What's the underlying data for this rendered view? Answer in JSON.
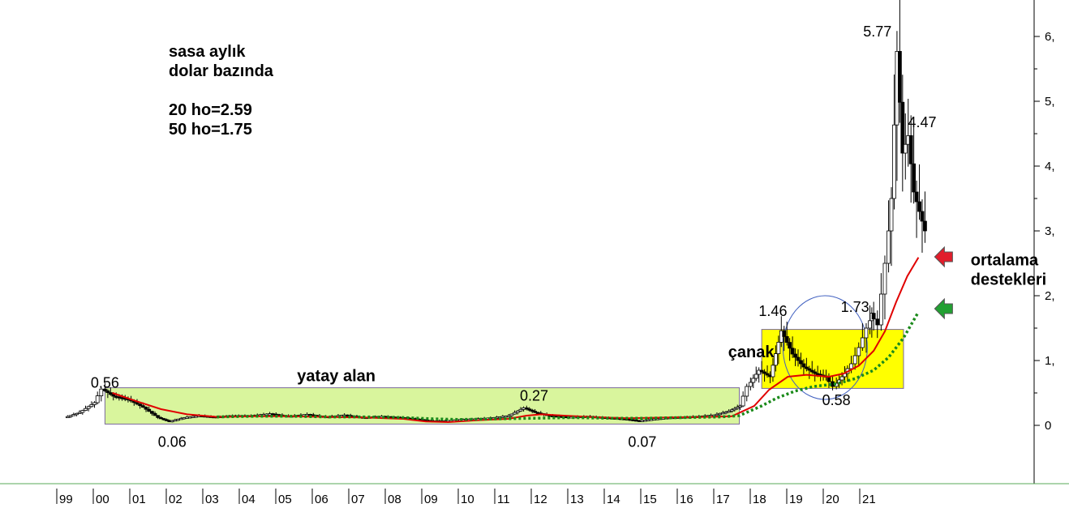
{
  "chart_data": {
    "type": "candlestick",
    "notes": [
      "sasa aylık",
      "dolar bazında",
      "20 ho=2.59",
      "50 ho=1.75"
    ],
    "x_tick_labels": [
      "99",
      "00",
      "01",
      "02",
      "03",
      "04",
      "05",
      "06",
      "07",
      "08",
      "09",
      "10",
      "11",
      "12",
      "13",
      "14",
      "15",
      "16",
      "17",
      "18",
      "19",
      "20",
      "21"
    ],
    "y_tick_labels": [
      "0",
      "1,",
      "2,",
      "3,",
      "4,",
      "5,",
      "6,"
    ],
    "y_ticks": [
      0,
      1,
      2,
      3,
      4,
      5,
      6
    ],
    "ylim": [
      -0.9,
      6.55
    ],
    "xlim": [
      1998.6,
      2024.9
    ],
    "annotations": [
      {
        "text": "0.56",
        "x": 2000.0,
        "y": 0.58,
        "style": "value"
      },
      {
        "text": "0.06",
        "x": 2001.8,
        "y": -0.33,
        "style": "value"
      },
      {
        "text": "0.27",
        "x": 2011.5,
        "y": 0.38,
        "style": "value"
      },
      {
        "text": "0.07",
        "x": 2014.4,
        "y": -0.33,
        "style": "value"
      },
      {
        "text": "1.46",
        "x": 2017.9,
        "y": 1.69,
        "style": "value"
      },
      {
        "text": "0.58",
        "x": 2019.6,
        "y": 0.31,
        "style": "value"
      },
      {
        "text": "1.73",
        "x": 2020.1,
        "y": 1.75,
        "style": "value"
      },
      {
        "text": "5.77",
        "x": 2020.7,
        "y": 6.0,
        "style": "value"
      },
      {
        "text": "4.47",
        "x": 2021.9,
        "y": 4.6,
        "style": "value"
      },
      {
        "text": "yatay alan",
        "x": 2006.2,
        "y": 0.68,
        "style": "label"
      },
      {
        "text": "çanak",
        "x": 2016.7,
        "y": 1.05,
        "style": "label"
      },
      {
        "text": "ortalama",
        "x": 2023.2,
        "y": 2.47,
        "style": "label"
      },
      {
        "text": "destekleri",
        "x": 2023.2,
        "y": 2.17,
        "style": "label"
      }
    ],
    "regions": [
      {
        "name": "yatay alan",
        "x0": 2000.0,
        "x1": 2017.0,
        "y0": 0.02,
        "y1": 0.58,
        "color": "#d9f59d"
      },
      {
        "name": "çanak",
        "x0": 2017.6,
        "x1": 2021.4,
        "y0": 0.57,
        "y1": 1.48,
        "color": "#ffff00"
      }
    ],
    "arrows": [
      {
        "x": 2021.8,
        "y": 2.6,
        "color": "#e11d2b"
      },
      {
        "x": 2021.8,
        "y": 1.8,
        "color": "#22a032"
      }
    ],
    "series": [
      {
        "name": "20 ho",
        "color": "#e00000",
        "points": [
          [
            2000.2,
            0.5
          ],
          [
            2000.8,
            0.38
          ],
          [
            2001.5,
            0.25
          ],
          [
            2002.2,
            0.17
          ],
          [
            2003.0,
            0.13
          ],
          [
            2004.0,
            0.14
          ],
          [
            2005.0,
            0.14
          ],
          [
            2006.0,
            0.13
          ],
          [
            2007.0,
            0.12
          ],
          [
            2008.0,
            0.1
          ],
          [
            2008.6,
            0.06
          ],
          [
            2009.2,
            0.05
          ],
          [
            2010.0,
            0.08
          ],
          [
            2010.8,
            0.1
          ],
          [
            2011.3,
            0.15
          ],
          [
            2011.7,
            0.17
          ],
          [
            2012.3,
            0.15
          ],
          [
            2013.0,
            0.13
          ],
          [
            2014.0,
            0.11
          ],
          [
            2015.0,
            0.12
          ],
          [
            2016.0,
            0.13
          ],
          [
            2016.8,
            0.14
          ],
          [
            2017.4,
            0.3
          ],
          [
            2017.8,
            0.55
          ],
          [
            2018.3,
            0.75
          ],
          [
            2018.8,
            0.78
          ],
          [
            2019.4,
            0.75
          ],
          [
            2019.8,
            0.8
          ],
          [
            2020.2,
            0.92
          ],
          [
            2020.6,
            1.15
          ],
          [
            2020.9,
            1.45
          ],
          [
            2021.2,
            1.9
          ],
          [
            2021.5,
            2.3
          ],
          [
            2021.8,
            2.59
          ]
        ]
      },
      {
        "name": "50 ho",
        "color": "#1a8a1a",
        "points": [
          [
            2003.0,
            0.13
          ],
          [
            2004.0,
            0.14
          ],
          [
            2005.0,
            0.14
          ],
          [
            2006.0,
            0.13
          ],
          [
            2007.0,
            0.13
          ],
          [
            2008.0,
            0.12
          ],
          [
            2008.8,
            0.1
          ],
          [
            2009.5,
            0.09
          ],
          [
            2010.5,
            0.1
          ],
          [
            2011.5,
            0.11
          ],
          [
            2012.5,
            0.12
          ],
          [
            2013.5,
            0.11
          ],
          [
            2014.5,
            0.11
          ],
          [
            2015.5,
            0.12
          ],
          [
            2016.5,
            0.13
          ],
          [
            2017.0,
            0.15
          ],
          [
            2017.6,
            0.3
          ],
          [
            2018.0,
            0.42
          ],
          [
            2018.5,
            0.53
          ],
          [
            2019.0,
            0.6
          ],
          [
            2019.6,
            0.64
          ],
          [
            2020.1,
            0.72
          ],
          [
            2020.6,
            0.85
          ],
          [
            2021.0,
            1.05
          ],
          [
            2021.4,
            1.35
          ],
          [
            2021.8,
            1.75
          ]
        ]
      },
      {
        "name": "price",
        "color": "#000000",
        "points": [
          [
            1999.0,
            0.12
          ],
          [
            1999.4,
            0.2
          ],
          [
            1999.8,
            0.35
          ],
          [
            2000.0,
            0.56
          ],
          [
            2000.3,
            0.45
          ],
          [
            2000.7,
            0.4
          ],
          [
            2001.1,
            0.28
          ],
          [
            2001.5,
            0.12
          ],
          [
            2001.8,
            0.06
          ],
          [
            2002.2,
            0.12
          ],
          [
            2002.6,
            0.15
          ],
          [
            2003.0,
            0.13
          ],
          [
            2003.5,
            0.15
          ],
          [
            2004.0,
            0.15
          ],
          [
            2004.5,
            0.18
          ],
          [
            2005.0,
            0.14
          ],
          [
            2005.5,
            0.17
          ],
          [
            2006.0,
            0.13
          ],
          [
            2006.5,
            0.16
          ],
          [
            2007.0,
            0.12
          ],
          [
            2007.5,
            0.14
          ],
          [
            2008.0,
            0.12
          ],
          [
            2008.4,
            0.1
          ],
          [
            2008.8,
            0.07
          ],
          [
            2009.2,
            0.07
          ],
          [
            2009.6,
            0.09
          ],
          [
            2010.0,
            0.1
          ],
          [
            2010.5,
            0.12
          ],
          [
            2010.9,
            0.15
          ],
          [
            2011.3,
            0.27
          ],
          [
            2011.6,
            0.2
          ],
          [
            2012.0,
            0.15
          ],
          [
            2012.5,
            0.13
          ],
          [
            2013.0,
            0.14
          ],
          [
            2013.5,
            0.12
          ],
          [
            2014.0,
            0.1
          ],
          [
            2014.4,
            0.07
          ],
          [
            2014.8,
            0.1
          ],
          [
            2015.2,
            0.12
          ],
          [
            2015.6,
            0.13
          ],
          [
            2016.0,
            0.14
          ],
          [
            2016.4,
            0.16
          ],
          [
            2016.8,
            0.22
          ],
          [
            2017.1,
            0.3
          ],
          [
            2017.3,
            0.6
          ],
          [
            2017.6,
            0.85
          ],
          [
            2017.9,
            0.75
          ],
          [
            2018.2,
            1.46
          ],
          [
            2018.5,
            1.1
          ],
          [
            2018.8,
            0.9
          ],
          [
            2019.1,
            0.8
          ],
          [
            2019.4,
            0.75
          ],
          [
            2019.6,
            0.6
          ],
          [
            2019.9,
            0.8
          ],
          [
            2020.1,
            0.95
          ],
          [
            2020.3,
            1.2
          ],
          [
            2020.5,
            1.5
          ],
          [
            2020.6,
            1.73
          ],
          [
            2020.8,
            1.55
          ],
          [
            2021.0,
            2.5
          ],
          [
            2021.15,
            3.5
          ],
          [
            2021.3,
            5.77
          ],
          [
            2021.45,
            4.2
          ],
          [
            2021.6,
            4.47
          ],
          [
            2021.75,
            3.6
          ],
          [
            2021.9,
            3.3
          ],
          [
            2022.05,
            3.0
          ]
        ]
      }
    ]
  }
}
